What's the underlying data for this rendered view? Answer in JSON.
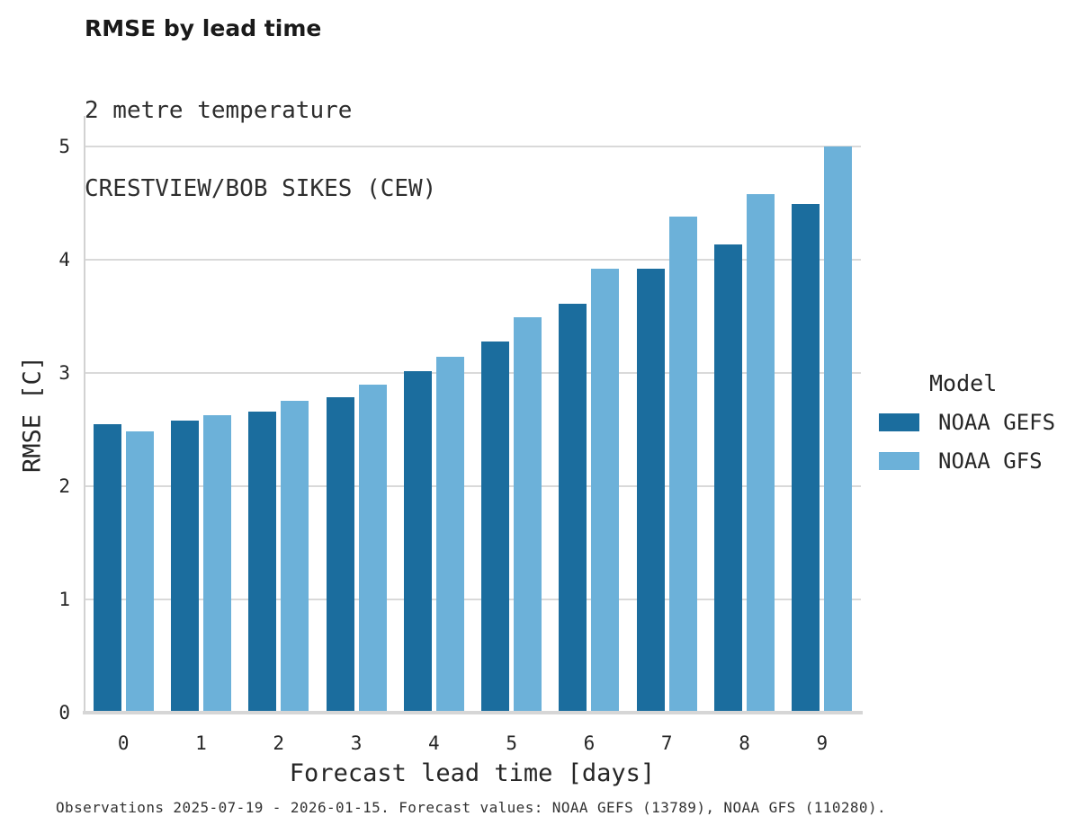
{
  "header": {
    "title": "RMSE by lead time",
    "subtitle_line1": "2 metre temperature",
    "subtitle_line2": "CRESTVIEW/BOB SIKES (CEW)"
  },
  "legend": {
    "title": "Model",
    "entries": [
      {
        "label": "NOAA GEFS",
        "color": "#1b6d9e"
      },
      {
        "label": "NOAA GFS",
        "color": "#6cb1d9"
      }
    ]
  },
  "footer": {
    "text": "Observations 2025-07-19 - 2026-01-15. Forecast values: NOAA GEFS (13789), NOAA GFS (110280)."
  },
  "chart_data": {
    "type": "bar",
    "title": "RMSE by lead time",
    "subtitle": [
      "2 metre temperature",
      "CRESTVIEW/BOB SIKES (CEW)"
    ],
    "categories": [
      "0",
      "1",
      "2",
      "3",
      "4",
      "5",
      "6",
      "7",
      "8",
      "9"
    ],
    "series": [
      {
        "name": "NOAA GEFS",
        "color": "#1b6d9e",
        "values": [
          2.54,
          2.57,
          2.65,
          2.78,
          3.01,
          3.27,
          3.61,
          3.92,
          4.13,
          4.49
        ]
      },
      {
        "name": "NOAA GFS",
        "color": "#6cb1d9",
        "values": [
          2.48,
          2.62,
          2.75,
          2.89,
          3.14,
          3.49,
          3.92,
          4.38,
          4.58,
          5.0
        ]
      }
    ],
    "xlabel": "Forecast lead time [days]",
    "ylabel": "RMSE [C]",
    "ylim": [
      0,
      5.26
    ],
    "yticks": [
      0,
      1,
      2,
      3,
      4,
      5
    ],
    "grid": "horizontal",
    "legend_position": "right",
    "legend_title": "Model",
    "caption": "Observations 2025-07-19 - 2026-01-15. Forecast values: NOAA GEFS (13789), NOAA GFS (110280)."
  },
  "colors": {
    "series_dark": "#1b6d9e",
    "series_light": "#6cb1d9",
    "gridline": "#d9d9d9",
    "spine": "#d2d2d2",
    "text": "#262626"
  }
}
